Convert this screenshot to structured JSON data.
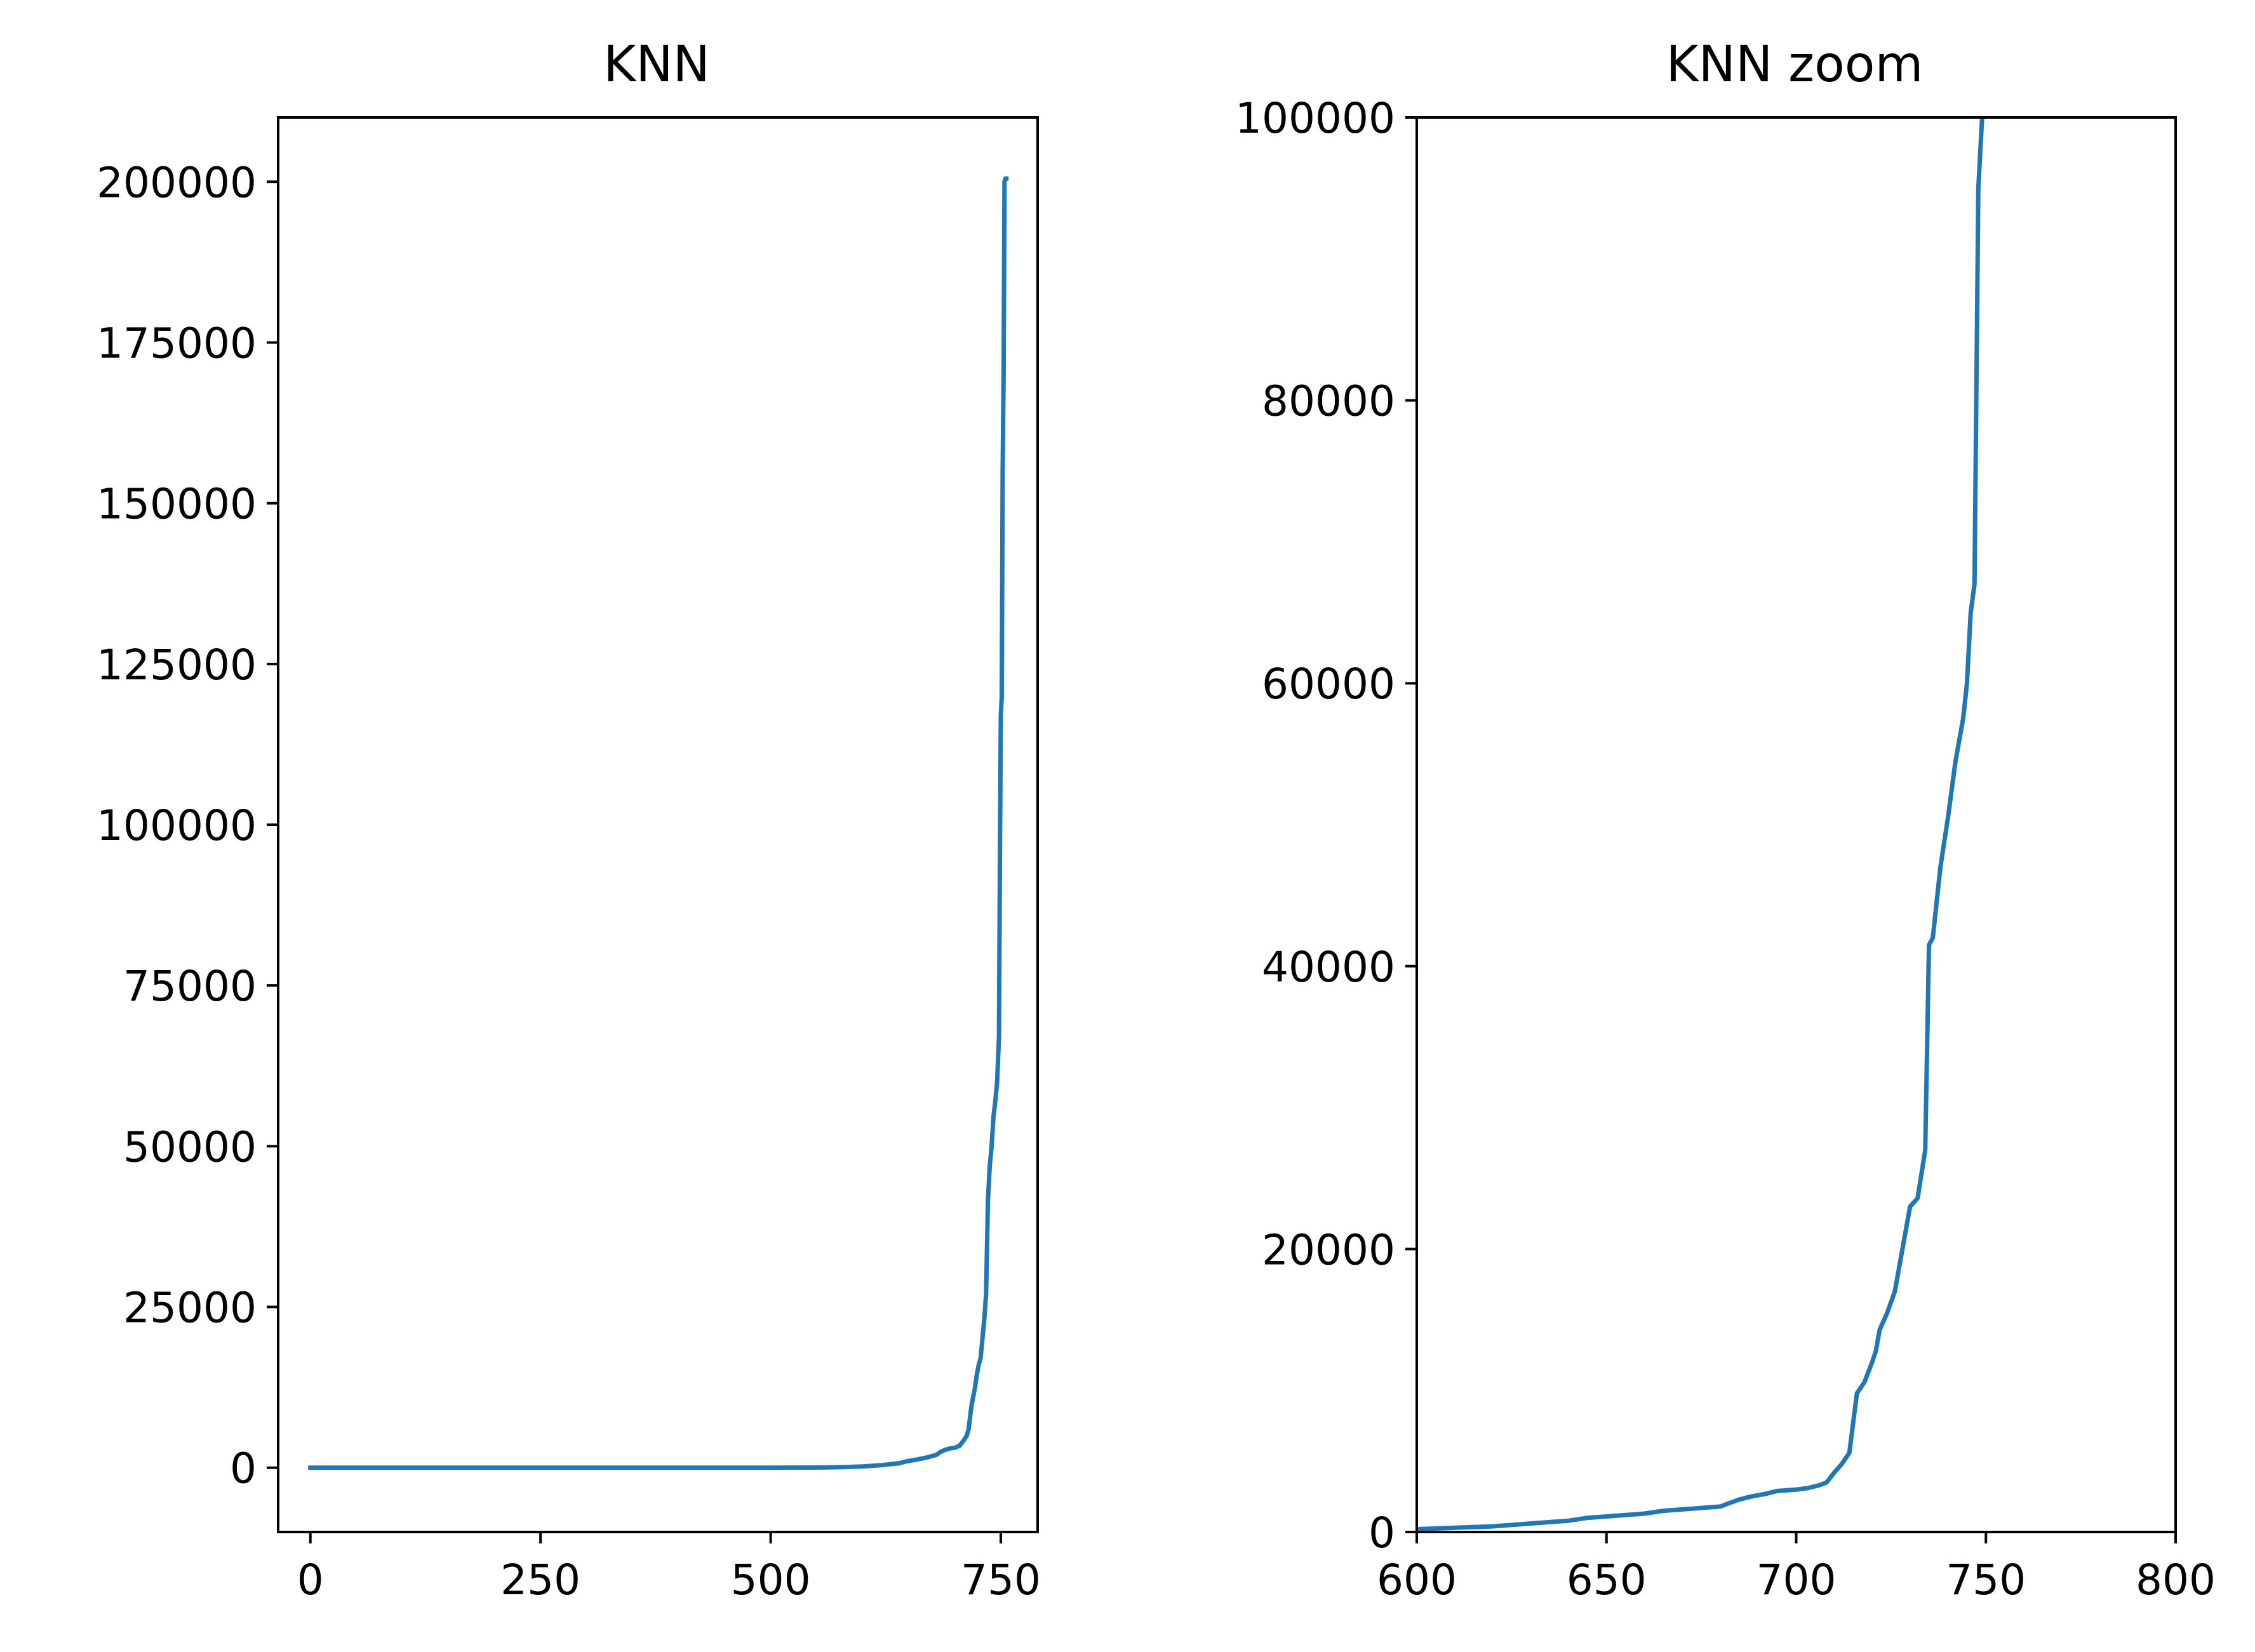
{
  "chart_data": [
    {
      "type": "line",
      "title": "KNN",
      "xlabel": "",
      "ylabel": "",
      "xlim": [
        -35,
        790
      ],
      "ylim": [
        -10000,
        210000
      ],
      "xticks": [
        0,
        250,
        500,
        750
      ],
      "yticks": [
        0,
        25000,
        50000,
        75000,
        100000,
        125000,
        150000,
        175000,
        200000
      ],
      "grid": false,
      "series": [
        {
          "color": "#1f77b4",
          "x": [
            0,
            100,
            200,
            300,
            400,
            500,
            540,
            560,
            580,
            600,
            610,
            620,
            630,
            640,
            645,
            650,
            660,
            670,
            675,
            680,
            685,
            690,
            695,
            700,
            705,
            710,
            713,
            715,
            718,
            720,
            722,
            724,
            726,
            728,
            730,
            732,
            734,
            736,
            738,
            740,
            742,
            744,
            746,
            748,
            749,
            750,
            751,
            752,
            753,
            754,
            755,
            756
          ],
          "y": [
            0,
            0,
            0,
            0,
            0,
            0,
            20,
            50,
            100,
            200,
            300,
            400,
            550,
            700,
            900,
            1050,
            1300,
            1600,
            1800,
            2000,
            2500,
            2800,
            3000,
            3100,
            3400,
            4300,
            5000,
            6000,
            9500,
            11000,
            12500,
            14500,
            16000,
            17000,
            20000,
            23000,
            27000,
            41500,
            47000,
            50000,
            54500,
            57000,
            60000,
            67000,
            95000,
            117000,
            120000,
            155000,
            170000,
            200000,
            200500,
            200500
          ]
        }
      ]
    },
    {
      "type": "line",
      "title": "KNN zoom",
      "xlabel": "",
      "ylabel": "",
      "xlim": [
        600,
        800
      ],
      "ylim": [
        0,
        100000
      ],
      "xticks": [
        600,
        650,
        700,
        750,
        800
      ],
      "yticks": [
        0,
        20000,
        40000,
        60000,
        80000,
        100000
      ],
      "grid": false,
      "series": [
        {
          "color": "#1f77b4",
          "x": [
            600,
            610,
            620,
            625,
            630,
            635,
            640,
            645,
            650,
            655,
            660,
            665,
            670,
            675,
            680,
            682,
            685,
            688,
            690,
            692,
            695,
            700,
            703,
            706,
            708,
            710,
            712,
            714,
            716,
            718,
            720,
            721,
            722,
            724,
            726,
            728,
            730,
            732,
            734,
            735,
            736,
            738,
            740,
            742,
            744,
            745,
            746,
            747,
            748,
            749
          ],
          "y": [
            200,
            300,
            400,
            500,
            600,
            700,
            800,
            1000,
            1100,
            1200,
            1300,
            1500,
            1600,
            1700,
            1800,
            2000,
            2300,
            2500,
            2600,
            2700,
            2900,
            3000,
            3100,
            3300,
            3500,
            4200,
            4800,
            5600,
            9800,
            10600,
            12000,
            12800,
            14300,
            15500,
            17000,
            20000,
            23000,
            23600,
            27000,
            41500,
            42000,
            47000,
            50500,
            54500,
            57500,
            60000,
            65000,
            67000,
            95000,
            100000
          ]
        }
      ]
    }
  ]
}
